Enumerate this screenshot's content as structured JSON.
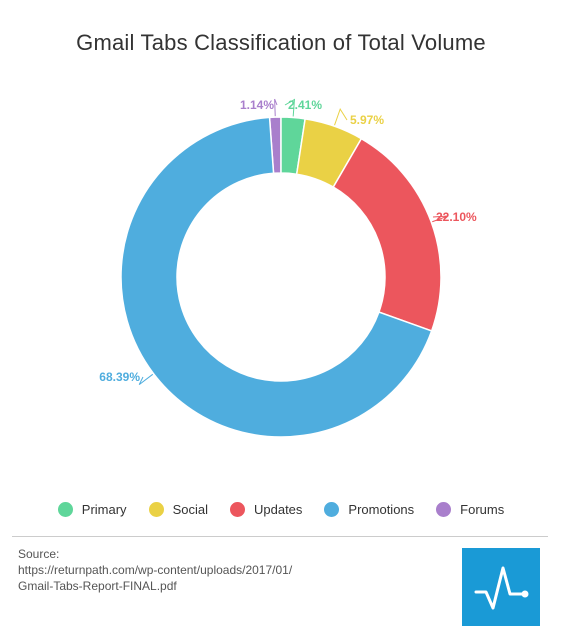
{
  "chart_data": {
    "type": "pie",
    "title": "Gmail Tabs Classification of Total Volume",
    "donut": true,
    "categories": [
      "Primary",
      "Social",
      "Updates",
      "Promotions",
      "Forums"
    ],
    "values": [
      2.41,
      5.97,
      22.1,
      68.39,
      1.14
    ],
    "data_labels": [
      "2.41%",
      "5.97%",
      "22.10%",
      "68.39%",
      "1.14%"
    ],
    "colors": [
      "#5fd69a",
      "#ead145",
      "#ec565d",
      "#4fadde",
      "#a97fcc"
    ],
    "legend_position": "bottom"
  },
  "source": {
    "label": "Source:",
    "lines": [
      "https://returnpath.com/wp-content/uploads/2017/01/",
      "Gmail-Tabs-Report-FINAL.pdf"
    ]
  },
  "logo": {
    "icon": "pulse-line-icon",
    "color": "#1a9ad6"
  }
}
